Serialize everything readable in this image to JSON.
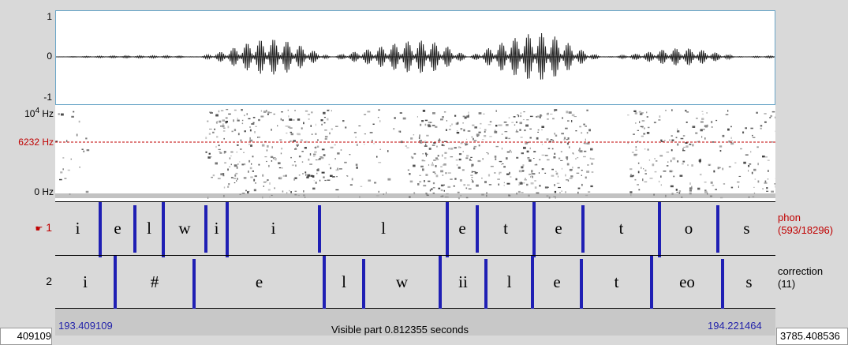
{
  "waveform": {
    "y_max": "1",
    "y_zero": "0",
    "y_min": "-1"
  },
  "spectrogram": {
    "max_freq_html": "10<sup>4</sup> Hz",
    "cursor_freq": "6232 Hz",
    "min_freq": "0 Hz"
  },
  "tiers": [
    {
      "number": "1",
      "pointer_icon": "hand-pointer-icon",
      "name": "phon",
      "info": "(593/18296)",
      "name_color": "#c00000",
      "segments": [
        "i",
        "e",
        "l",
        "w",
        "i",
        "i",
        "l",
        "e",
        "t",
        "e",
        "t",
        "o",
        "s"
      ]
    },
    {
      "number": "2",
      "name": "correction",
      "info": "(11)",
      "name_color": "#000000",
      "segments": [
        "i",
        "#",
        "e",
        "l",
        "w",
        "ii",
        "l",
        "e",
        "t",
        "eo",
        "s"
      ]
    }
  ],
  "timebar": {
    "left_outer": "409109",
    "start": "193.409109",
    "visible": "Visible part 0.812355 seconds",
    "end": "194.221464",
    "right_outer": "3785.408536"
  },
  "colors": {
    "boundary": "#1f1fb4",
    "cursor": "#c00000",
    "time_text": "#2222aa"
  }
}
